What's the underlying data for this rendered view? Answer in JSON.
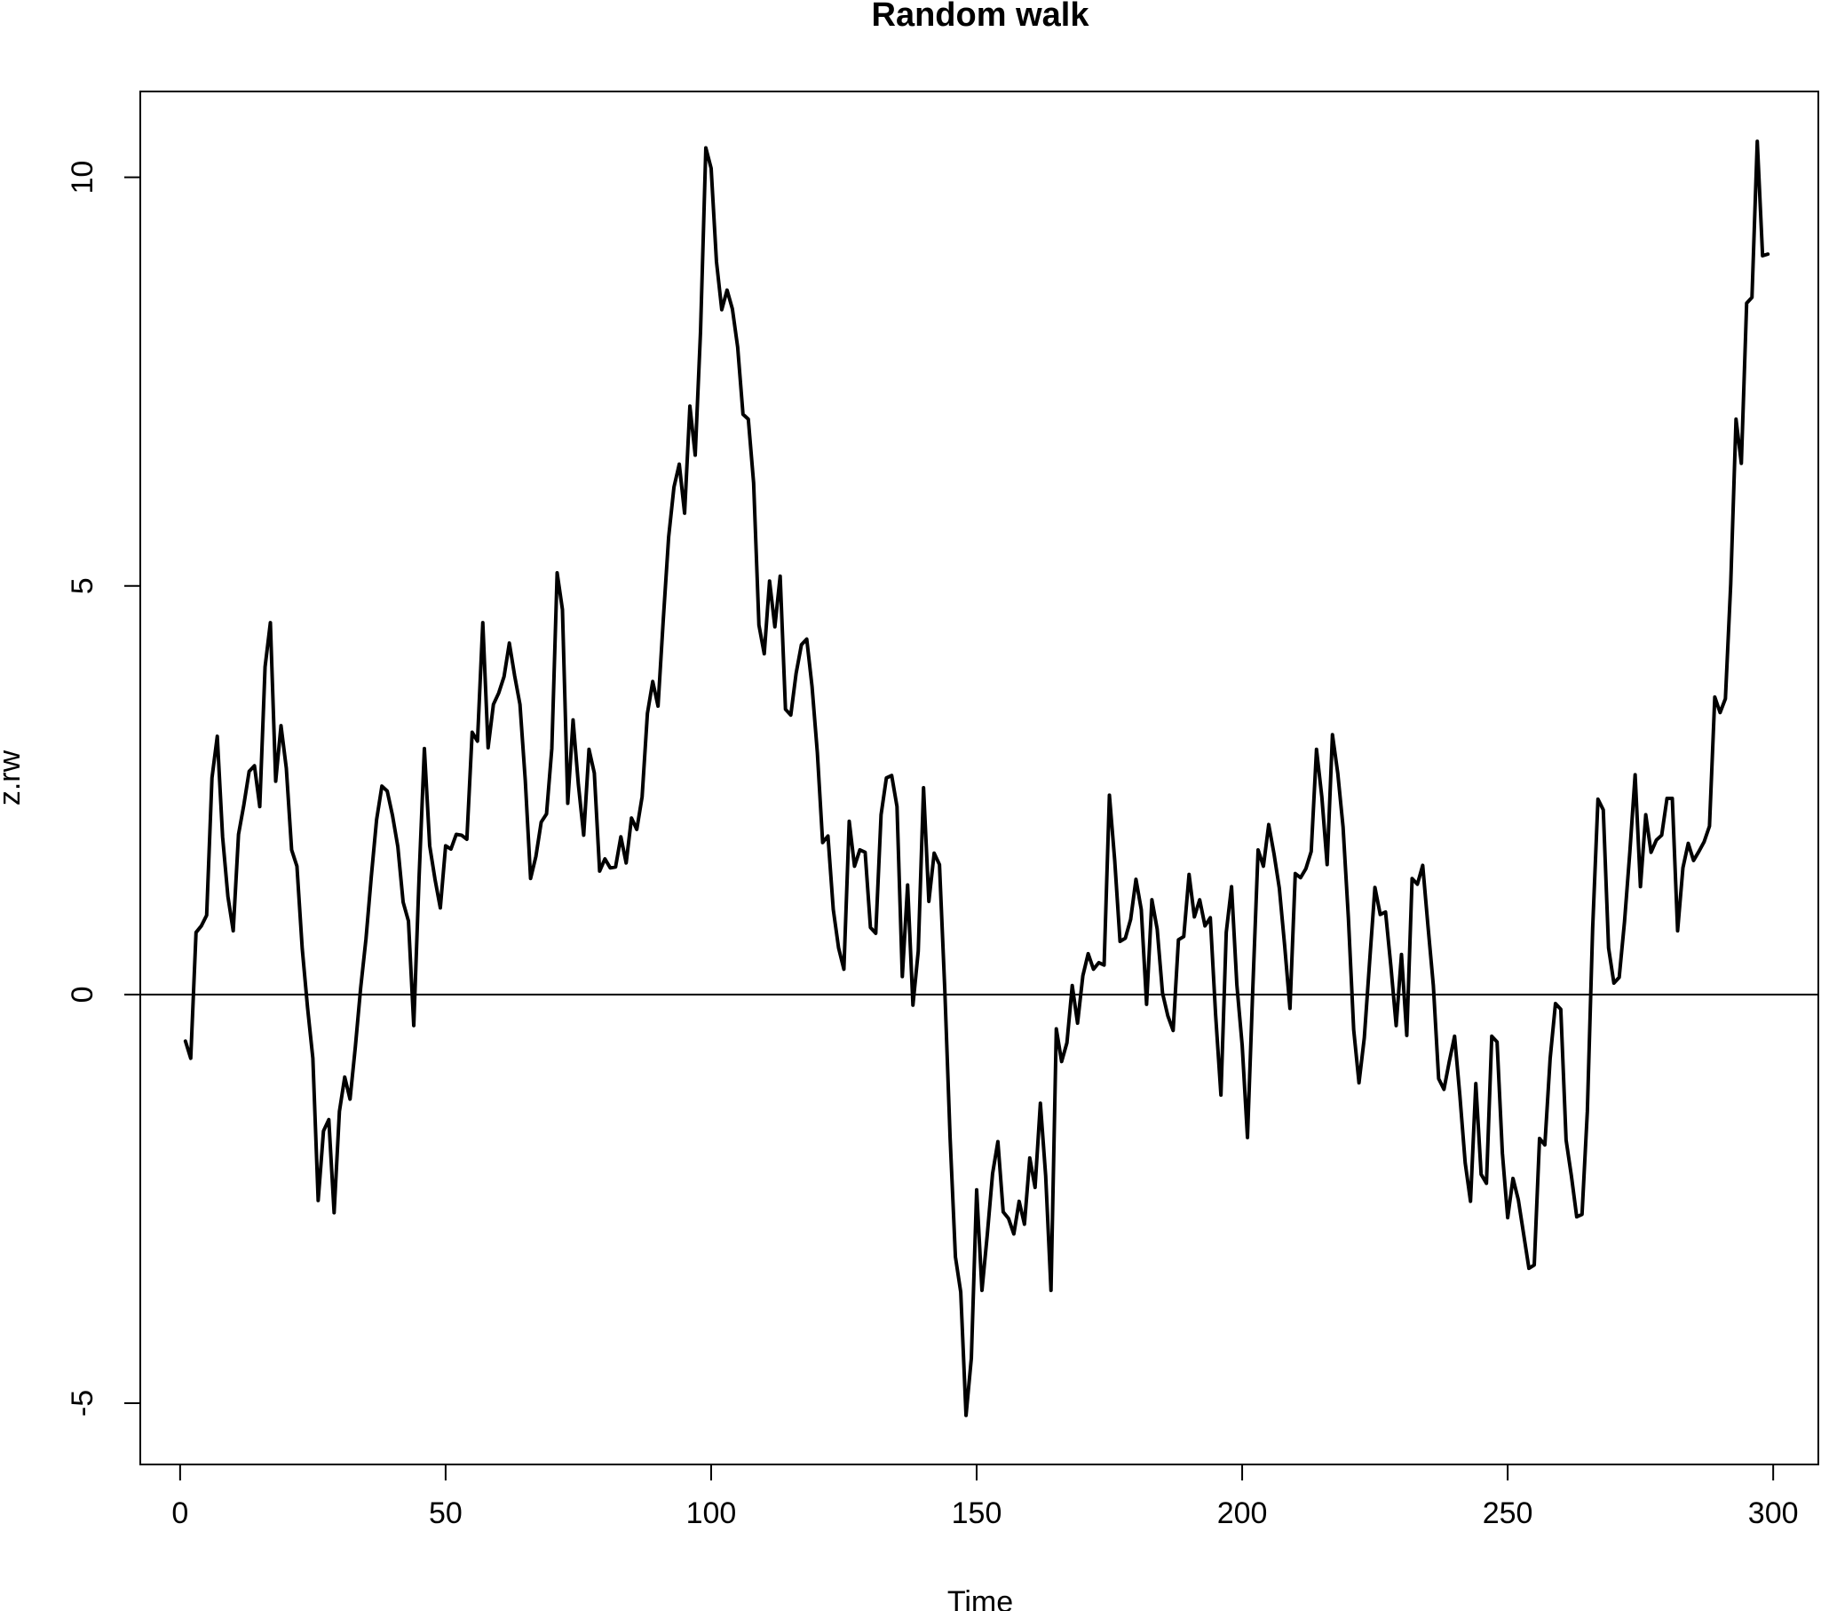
{
  "chart_data": {
    "type": "line",
    "title": "Random walk",
    "xlabel": "Time",
    "ylabel": "z.rw",
    "xlim": [
      -7.5,
      308.5
    ],
    "ylim": [
      -5.75,
      11.05
    ],
    "xticks": [
      0,
      50,
      100,
      150,
      200,
      250,
      300
    ],
    "yticks": [
      -5,
      0,
      5,
      10
    ],
    "xtick_labels": [
      "0",
      "50",
      "100",
      "150",
      "200",
      "250",
      "300"
    ],
    "ytick_labels": [
      "-5",
      "0",
      "5",
      "10"
    ],
    "reference_line": 0,
    "grid": false,
    "legend": "none",
    "series": [
      {
        "color": "#000000",
        "x_start": 1,
        "x_step": 1,
        "values": [
          -0.57,
          -0.78,
          0.76,
          0.84,
          0.97,
          2.65,
          3.16,
          1.93,
          1.2,
          0.78,
          1.96,
          2.32,
          2.73,
          2.8,
          2.3,
          4.01,
          4.55,
          2.61,
          3.29,
          2.77,
          1.77,
          1.57,
          0.56,
          -0.16,
          -0.78,
          -2.52,
          -1.67,
          -1.53,
          -2.67,
          -1.43,
          -1.01,
          -1.28,
          -0.64,
          0.08,
          0.68,
          1.44,
          2.14,
          2.55,
          2.49,
          2.19,
          1.81,
          1.13,
          0.9,
          -0.38,
          1.43,
          3.01,
          1.82,
          1.41,
          1.06,
          1.82,
          1.78,
          1.96,
          1.95,
          1.9,
          3.21,
          3.1,
          4.55,
          3.02,
          3.55,
          3.69,
          3.89,
          4.3,
          3.9,
          3.55,
          2.62,
          1.42,
          1.69,
          2.11,
          2.21,
          3.01,
          5.16,
          4.71,
          2.34,
          3.36,
          2.57,
          1.95,
          3.0,
          2.71,
          1.51,
          1.66,
          1.55,
          1.56,
          1.93,
          1.61,
          2.16,
          2.02,
          2.42,
          3.44,
          3.83,
          3.53,
          4.6,
          5.6,
          6.21,
          6.49,
          5.89,
          7.2,
          6.6,
          8.11,
          10.36,
          10.11,
          8.97,
          8.38,
          8.62,
          8.39,
          7.92,
          7.1,
          7.04,
          6.26,
          4.52,
          4.17,
          5.06,
          4.5,
          5.12,
          3.49,
          3.42,
          3.93,
          4.28,
          4.35,
          3.77,
          2.96,
          1.86,
          1.94,
          1.04,
          0.57,
          0.31,
          2.12,
          1.57,
          1.77,
          1.74,
          0.82,
          0.75,
          2.2,
          2.65,
          2.68,
          2.3,
          0.22,
          1.34,
          -0.13,
          0.53,
          2.53,
          1.14,
          1.73,
          1.59,
          0.06,
          -1.75,
          -3.21,
          -3.64,
          -5.15,
          -4.45,
          -2.39,
          -3.62,
          -2.94,
          -2.19,
          -1.8,
          -2.66,
          -2.74,
          -2.93,
          -2.53,
          -2.81,
          -2.0,
          -2.36,
          -1.33,
          -2.22,
          -3.62,
          -0.42,
          -0.82,
          -0.59,
          0.11,
          -0.35,
          0.23,
          0.5,
          0.31,
          0.39,
          0.36,
          2.44,
          1.64,
          0.65,
          0.69,
          0.92,
          1.41,
          1.04,
          -0.12,
          1.16,
          0.8,
          0.02,
          -0.26,
          -0.44,
          0.67,
          0.71,
          1.47,
          0.95,
          1.16,
          0.84,
          0.94,
          -0.25,
          -1.23,
          0.76,
          1.32,
          0.12,
          -0.62,
          -1.75,
          0.07,
          1.77,
          1.57,
          2.08,
          1.72,
          1.3,
          0.6,
          -0.17,
          1.48,
          1.43,
          1.54,
          1.75,
          3.0,
          2.42,
          1.59,
          3.18,
          2.71,
          2.05,
          0.94,
          -0.43,
          -1.08,
          -0.53,
          0.4,
          1.31,
          0.98,
          1.01,
          0.35,
          -0.38,
          0.49,
          -0.5,
          1.42,
          1.35,
          1.58,
          0.83,
          0.11,
          -1.03,
          -1.16,
          -0.82,
          -0.51,
          -1.24,
          -2.06,
          -2.53,
          -1.09,
          -2.2,
          -2.31,
          -0.51,
          -0.58,
          -1.94,
          -2.73,
          -2.25,
          -2.51,
          -2.93,
          -3.35,
          -3.31,
          -1.76,
          -1.84,
          -0.78,
          -0.11,
          -0.18,
          -1.78,
          -2.22,
          -2.72,
          -2.69,
          -1.43,
          0.81,
          2.39,
          2.26,
          0.57,
          0.14,
          0.21,
          0.89,
          1.74,
          2.69,
          1.32,
          2.2,
          1.74,
          1.89,
          1.95,
          2.4,
          2.4,
          0.78,
          1.55,
          1.85,
          1.64,
          1.75,
          1.87,
          2.06,
          3.64,
          3.45,
          3.62,
          5.02,
          7.04,
          6.5,
          8.46,
          8.53,
          10.44,
          9.04,
          9.06
        ]
      }
    ]
  }
}
